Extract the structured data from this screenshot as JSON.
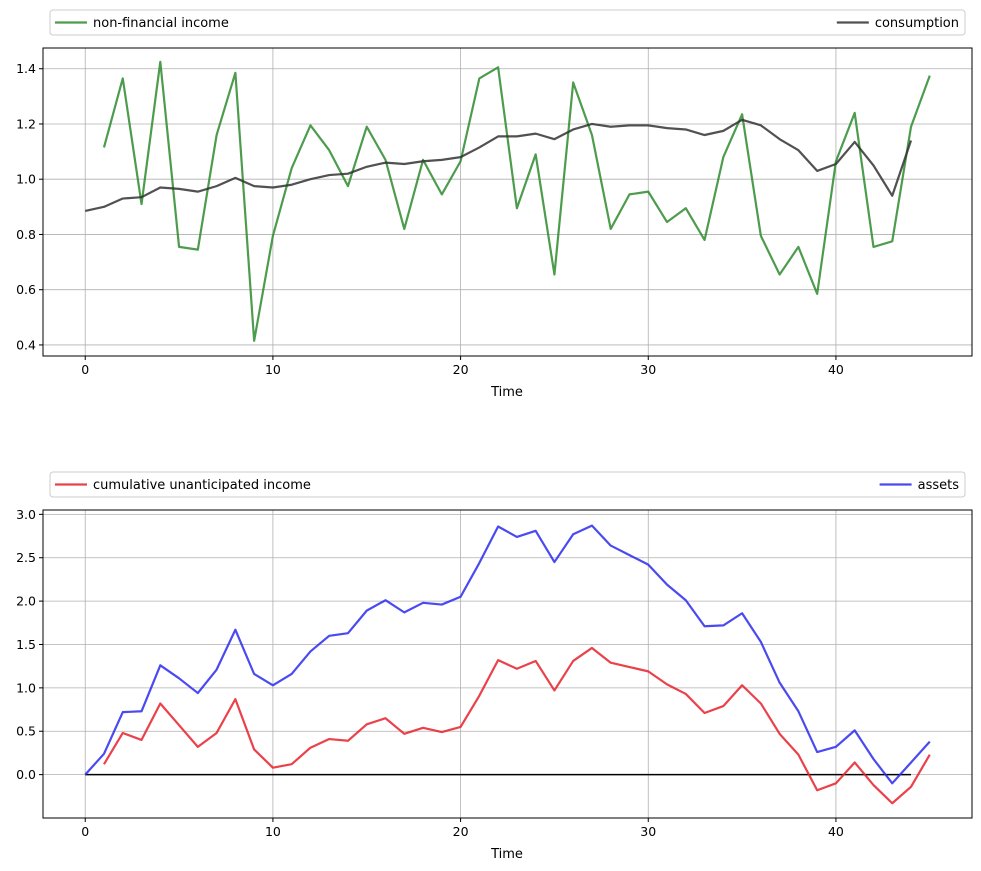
{
  "chart_data": [
    {
      "type": "line",
      "title": "",
      "xlabel": "Time",
      "ylabel": "",
      "xlim": [
        -2.25,
        47.25
      ],
      "ylim": [
        0.36,
        1.475
      ],
      "xticks": [
        0,
        10,
        20,
        30,
        40
      ],
      "yticks": [
        0.4,
        0.6,
        0.8,
        1.0,
        1.2,
        1.4
      ],
      "ytick_labels": [
        "0.4",
        "0.6",
        "0.8",
        "1.0",
        "1.2",
        "1.4"
      ],
      "grid": true,
      "legend_placement": "above, spread across",
      "series": [
        {
          "name": "non-financial income",
          "color": "#2e8b2e",
          "x": [
            1,
            2,
            3,
            4,
            5,
            6,
            7,
            8,
            9,
            10,
            11,
            12,
            13,
            14,
            15,
            16,
            17,
            18,
            19,
            20,
            21,
            22,
            23,
            24,
            25,
            26,
            27,
            28,
            29,
            30,
            31,
            32,
            33,
            34,
            35,
            36,
            37,
            38,
            39,
            40,
            41,
            42,
            43,
            44,
            45
          ],
          "values": [
            1.115,
            1.365,
            0.91,
            1.425,
            0.755,
            0.745,
            1.16,
            1.385,
            0.415,
            0.795,
            1.04,
            1.195,
            1.105,
            0.975,
            1.19,
            1.07,
            0.82,
            1.07,
            0.945,
            1.065,
            1.365,
            1.405,
            0.895,
            1.09,
            0.655,
            1.35,
            1.16,
            0.82,
            0.945,
            0.955,
            0.845,
            0.895,
            0.78,
            1.08,
            1.235,
            0.795,
            0.655,
            0.755,
            0.585,
            1.065,
            1.24,
            0.755,
            0.775,
            1.19,
            1.375
          ]
        },
        {
          "name": "consumption",
          "color": "#333333",
          "x": [
            0,
            1,
            2,
            3,
            4,
            5,
            6,
            7,
            8,
            9,
            10,
            11,
            12,
            13,
            14,
            15,
            16,
            17,
            18,
            19,
            20,
            21,
            22,
            23,
            24,
            25,
            26,
            27,
            28,
            29,
            30,
            31,
            32,
            33,
            34,
            35,
            36,
            37,
            38,
            39,
            40,
            41,
            42,
            43,
            44
          ],
          "values": [
            0.885,
            0.9,
            0.93,
            0.935,
            0.97,
            0.965,
            0.955,
            0.975,
            1.005,
            0.975,
            0.97,
            0.98,
            1.0,
            1.015,
            1.02,
            1.045,
            1.06,
            1.055,
            1.065,
            1.07,
            1.08,
            1.115,
            1.155,
            1.155,
            1.165,
            1.145,
            1.18,
            1.2,
            1.19,
            1.195,
            1.195,
            1.185,
            1.18,
            1.16,
            1.175,
            1.215,
            1.195,
            1.145,
            1.105,
            1.03,
            1.055,
            1.135,
            1.05,
            0.94,
            1.14
          ]
        }
      ]
    },
    {
      "type": "line",
      "title": "",
      "xlabel": "Time",
      "ylabel": "",
      "xlim": [
        -2.25,
        47.25
      ],
      "ylim": [
        -0.5,
        3.05
      ],
      "xticks": [
        0,
        10,
        20,
        30,
        40
      ],
      "yticks": [
        0.0,
        0.5,
        1.0,
        1.5,
        2.0,
        2.5,
        3.0
      ],
      "ytick_labels": [
        "0.0",
        "0.5",
        "1.0",
        "1.5",
        "2.0",
        "2.5",
        "3.0"
      ],
      "grid": true,
      "zero_line": {
        "y": 0,
        "x_from": 0,
        "x_to": 44,
        "color": "#000000"
      },
      "legend_placement": "above, spread across",
      "series": [
        {
          "name": "cumulative unanticipated income",
          "color": "#e8202a",
          "x": [
            1,
            2,
            3,
            4,
            5,
            6,
            7,
            8,
            9,
            10,
            11,
            12,
            13,
            14,
            15,
            16,
            17,
            18,
            19,
            20,
            21,
            22,
            23,
            24,
            25,
            26,
            27,
            28,
            29,
            30,
            31,
            32,
            33,
            34,
            35,
            36,
            37,
            38,
            39,
            40,
            41,
            42,
            43,
            44,
            45
          ],
          "values": [
            0.12,
            0.48,
            0.4,
            0.82,
            0.57,
            0.32,
            0.48,
            0.87,
            0.29,
            0.08,
            0.12,
            0.31,
            0.41,
            0.39,
            0.58,
            0.65,
            0.47,
            0.54,
            0.49,
            0.55,
            0.91,
            1.32,
            1.22,
            1.31,
            0.97,
            1.31,
            1.46,
            1.29,
            1.24,
            1.19,
            1.04,
            0.93,
            0.71,
            0.79,
            1.03,
            0.82,
            0.47,
            0.23,
            -0.18,
            -0.1,
            0.14,
            -0.12,
            -0.33,
            -0.14,
            0.23
          ]
        },
        {
          "name": "assets",
          "color": "#2a2af0",
          "x": [
            0,
            1,
            2,
            3,
            4,
            5,
            6,
            7,
            8,
            9,
            10,
            11,
            12,
            13,
            14,
            15,
            16,
            17,
            18,
            19,
            20,
            21,
            22,
            23,
            24,
            25,
            26,
            27,
            28,
            29,
            30,
            31,
            32,
            33,
            34,
            35,
            36,
            37,
            38,
            39,
            40,
            41,
            42,
            43,
            44,
            45
          ],
          "values": [
            0.0,
            0.24,
            0.72,
            0.73,
            1.26,
            1.11,
            0.94,
            1.21,
            1.67,
            1.16,
            1.03,
            1.16,
            1.42,
            1.6,
            1.63,
            1.89,
            2.01,
            1.87,
            1.98,
            1.96,
            2.05,
            2.44,
            2.86,
            2.74,
            2.81,
            2.45,
            2.77,
            2.87,
            2.64,
            2.53,
            2.42,
            2.19,
            2.01,
            1.71,
            1.72,
            1.86,
            1.53,
            1.06,
            0.73,
            0.26,
            0.32,
            0.51,
            0.18,
            -0.1,
            0.14,
            0.38
          ]
        }
      ]
    }
  ]
}
